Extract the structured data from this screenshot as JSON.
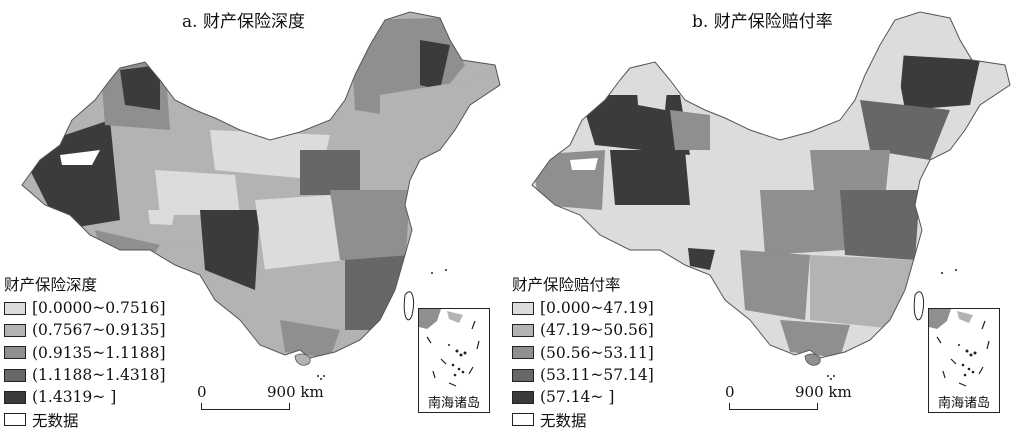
{
  "panels": [
    {
      "title": "a. 财产保险深度",
      "legend_title": "财产保险深度",
      "legend": [
        {
          "label": "[0.0000~0.7516]",
          "color": "#dcdcdc"
        },
        {
          "label": "(0.7567~0.9135]",
          "color": "#b3b3b3"
        },
        {
          "label": "(0.9135~1.1188]",
          "color": "#8f8f8f"
        },
        {
          "label": "(1.1188~1.4318]",
          "color": "#676767"
        },
        {
          "label": "(1.4319~ ]",
          "color": "#3b3b3b"
        },
        {
          "label": "无数据",
          "color": "#ffffff"
        }
      ],
      "scale": {
        "start": "0",
        "end": "900 km"
      },
      "inset_label": "南海诸岛"
    },
    {
      "title": "b. 财产保险赔付率",
      "legend_title": "财产保险赔付率",
      "legend": [
        {
          "label": "[0.000~47.19]",
          "color": "#dcdcdc"
        },
        {
          "label": "(47.19~50.56]",
          "color": "#b3b3b3"
        },
        {
          "label": "(50.56~53.11]",
          "color": "#8f8f8f"
        },
        {
          "label": "(53.11~57.14]",
          "color": "#676767"
        },
        {
          "label": "(57.14~ ]",
          "color": "#3b3b3b"
        },
        {
          "label": "无数据",
          "color": "#ffffff"
        }
      ],
      "scale": {
        "start": "0",
        "end": "900 km"
      },
      "inset_label": "南海诸岛"
    }
  ]
}
